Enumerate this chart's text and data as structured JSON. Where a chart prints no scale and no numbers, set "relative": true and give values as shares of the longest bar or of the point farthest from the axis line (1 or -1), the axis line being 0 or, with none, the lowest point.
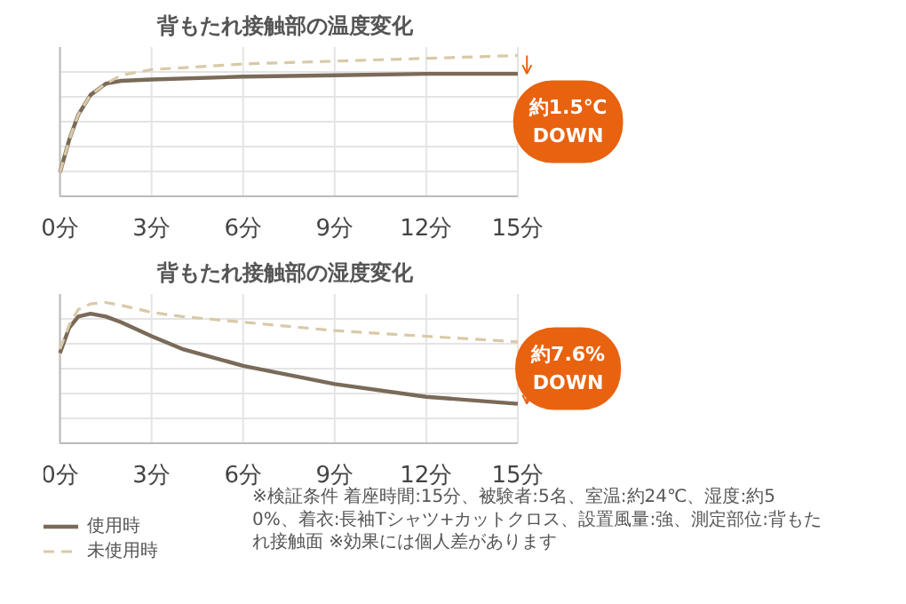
{
  "chart_data": [
    {
      "type": "line",
      "title": "背もたれ接触部の温度変化",
      "relative": true,
      "x": [
        0,
        0.3,
        0.6,
        1,
        1.5,
        2,
        3,
        6,
        9,
        12,
        15
      ],
      "xlim": [
        0,
        15
      ],
      "xticks": [
        {
          "value": 0,
          "label": "0分"
        },
        {
          "value": 3,
          "label": "3分"
        },
        {
          "value": 6,
          "label": "6分"
        },
        {
          "value": 9,
          "label": "9分"
        },
        {
          "value": 12,
          "label": "12分"
        },
        {
          "value": 15,
          "label": "15分"
        }
      ],
      "grid": true,
      "legend": false,
      "marker": "none",
      "series": [
        {
          "color": "#7a6a58",
          "line_style": "solid",
          "values": [
            0.17,
            0.4,
            0.58,
            0.72,
            0.8,
            0.82,
            0.83,
            0.85,
            0.86,
            0.87,
            0.87
          ]
        },
        {
          "color": "#d9c9a8",
          "line_style": "dashed",
          "values": [
            0.17,
            0.4,
            0.58,
            0.72,
            0.8,
            0.86,
            0.9,
            0.94,
            0.96,
            0.98,
            1.0
          ]
        }
      ],
      "annotations": [
        "約1.5℃ DOWN"
      ]
    },
    {
      "type": "line",
      "title": "背もたれ接触部の湿度変化",
      "relative": true,
      "x": [
        0,
        0.3,
        0.6,
        1,
        1.5,
        2,
        3,
        4,
        6,
        9,
        12,
        15
      ],
      "xlim": [
        0,
        15
      ],
      "xticks": [
        {
          "value": 0,
          "label": "0分"
        },
        {
          "value": 3,
          "label": "3分"
        },
        {
          "value": 6,
          "label": "6分"
        },
        {
          "value": 9,
          "label": "9分"
        },
        {
          "value": 12,
          "label": "12分"
        },
        {
          "value": 15,
          "label": "15分"
        }
      ],
      "grid": true,
      "legend": "bottom left",
      "marker": "none",
      "series": [
        {
          "name": "使用時",
          "color": "#7a6a58",
          "line_style": "solid",
          "values": [
            0.64,
            0.82,
            0.9,
            0.92,
            0.9,
            0.86,
            0.76,
            0.67,
            0.55,
            0.42,
            0.33,
            0.28
          ]
        },
        {
          "name": "未使用時",
          "color": "#d9c9a8",
          "line_style": "dashed",
          "values": [
            0.67,
            0.84,
            0.95,
            0.99,
            1.0,
            0.98,
            0.93,
            0.9,
            0.86,
            0.8,
            0.76,
            0.72
          ]
        }
      ],
      "annotations": [
        "約7.6% DOWN",
        "※検証条件 着座時間:15分、被験者:5名、室温:約24℃、湿度:約50%、着衣:長袖Tシャツ+カットクロス、設置風量:強、測定部位:背もたれ接触面 ※効果には個人差があります"
      ]
    }
  ]
}
